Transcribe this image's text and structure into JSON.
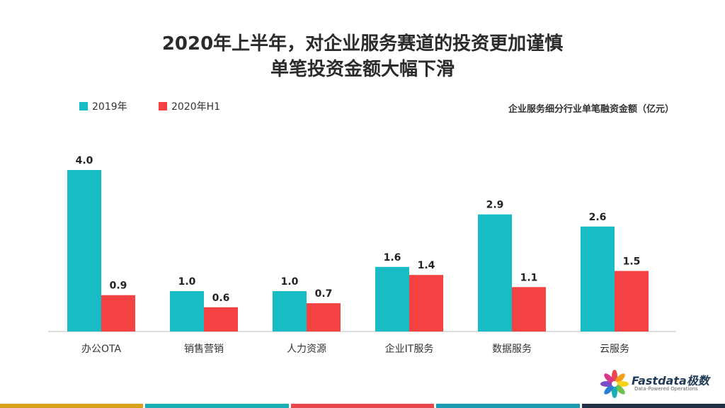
{
  "title": {
    "line1": "2020年上半年，对企业服务赛道的投资更加谨慎",
    "line2": "单笔投资金额大幅下滑"
  },
  "unit_label": "企业服务细分行业单笔融资金额（亿元）",
  "logo": {
    "brand": "Fastdata极数",
    "tagline": "Data-Powered Operations"
  },
  "colors": {
    "series_2019": "#18bcc4",
    "series_2020h1": "#f44242",
    "footer": [
      "#d9a21a",
      "#18b0b5",
      "#e8474c",
      "#1a9bb0",
      "#1f2f44"
    ]
  },
  "chart_data": {
    "type": "bar",
    "categories": [
      "办公OTA",
      "销售营销",
      "人力资源",
      "企业IT服务",
      "数据服务",
      "云服务"
    ],
    "series": [
      {
        "name": "2019年",
        "values": [
          4.0,
          1.0,
          1.0,
          1.6,
          2.9,
          2.6
        ]
      },
      {
        "name": "2020年H1",
        "values": [
          0.9,
          0.6,
          0.7,
          1.4,
          1.1,
          1.5
        ]
      }
    ],
    "data_labels": [
      [
        "4.0",
        "1.0",
        "1.0",
        "1.6",
        "2.9",
        "2.6"
      ],
      [
        "0.9",
        "0.6",
        "0.7",
        "1.4",
        "1.1",
        "1.5"
      ]
    ],
    "ylim": [
      0,
      4.4
    ],
    "grid": false,
    "legend_position": "top-left"
  }
}
